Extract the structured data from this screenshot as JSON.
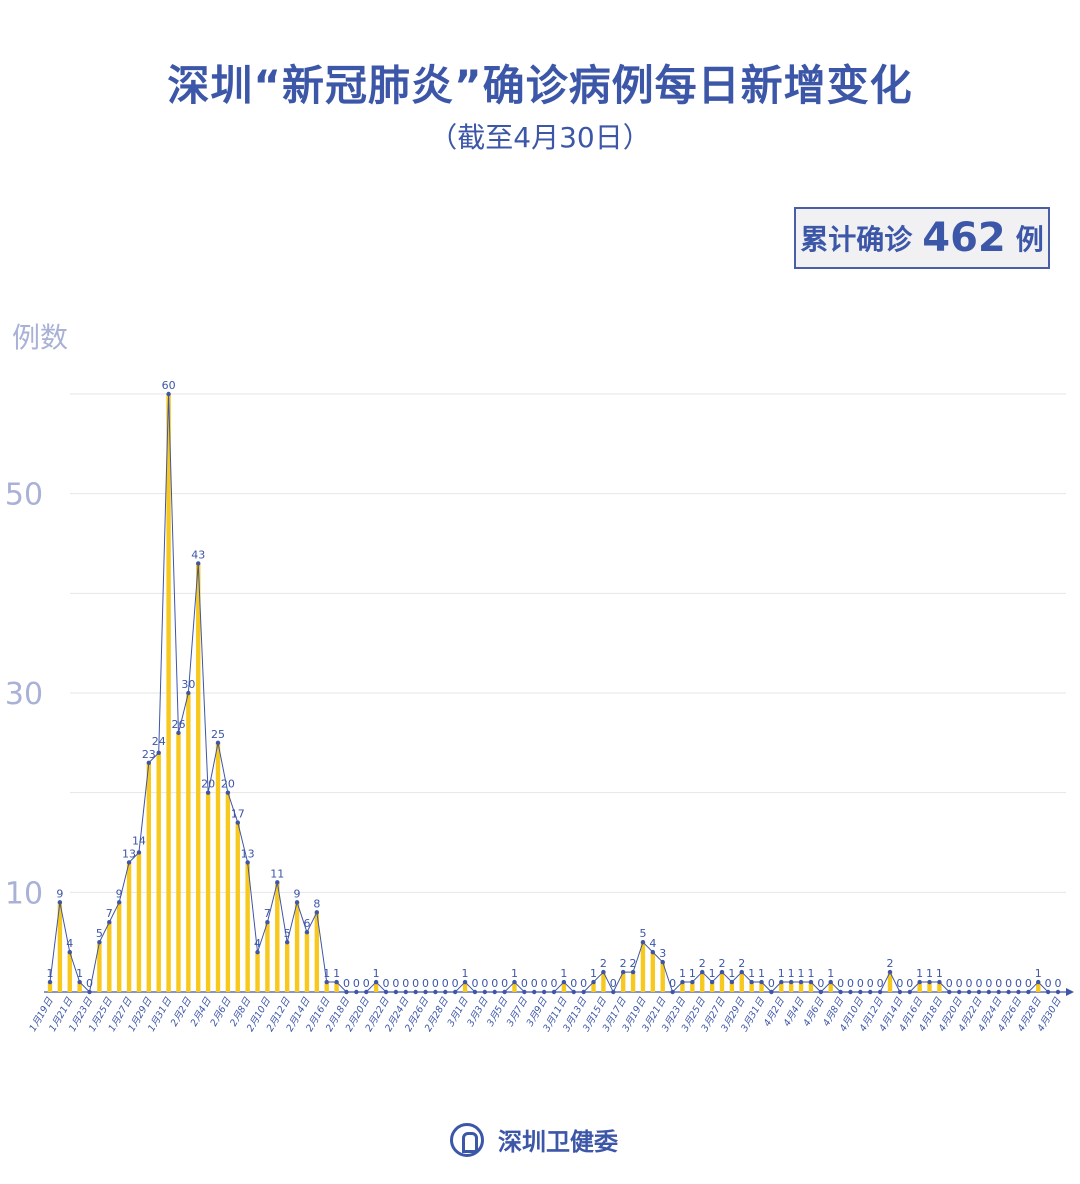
{
  "title": "深圳“新冠肺炎”确诊病例每日新增变化",
  "subtitle": "（截至4月30日）",
  "total": {
    "label": "累计确诊",
    "value": "462",
    "unit": "例"
  },
  "footer": {
    "org": "深圳卫健委"
  },
  "colors": {
    "bar": "#f7c81e",
    "line": "#3f55a5",
    "text": "#3c56a8",
    "axis_label": "#a9b1d6",
    "grid": "#e6e6e6"
  },
  "chart_data": {
    "type": "bar",
    "overlay": "line",
    "ylabel": "例数",
    "ylim": [
      0,
      60
    ],
    "yticks_labeled": [
      10,
      30,
      50
    ],
    "gridlines": [
      10,
      20,
      30,
      40,
      50,
      60
    ],
    "grid": true,
    "categories": [
      "1月19日",
      "1月20日",
      "1月21日",
      "1月22日",
      "1月23日",
      "1月24日",
      "1月25日",
      "1月26日",
      "1月27日",
      "1月28日",
      "1月29日",
      "1月30日",
      "1月31日",
      "2月1日",
      "2月2日",
      "2月3日",
      "2月4日",
      "2月5日",
      "2月6日",
      "2月7日",
      "2月8日",
      "2月9日",
      "2月10日",
      "2月11日",
      "2月12日",
      "2月13日",
      "2月14日",
      "2月15日",
      "2月16日",
      "2月17日",
      "2月18日",
      "2月19日",
      "2月20日",
      "2月21日",
      "2月22日",
      "2月23日",
      "2月24日",
      "2月25日",
      "2月26日",
      "2月27日",
      "2月28日",
      "2月29日",
      "3月1日",
      "3月2日",
      "3月3日",
      "3月4日",
      "3月5日",
      "3月6日",
      "3月7日",
      "3月8日",
      "3月9日",
      "3月10日",
      "3月11日",
      "3月12日",
      "3月13日",
      "3月14日",
      "3月15日",
      "3月16日",
      "3月17日",
      "3月18日",
      "3月19日",
      "3月20日",
      "3月21日",
      "3月22日",
      "3月23日",
      "3月24日",
      "3月25日",
      "3月26日",
      "3月27日",
      "3月28日",
      "3月29日",
      "3月30日",
      "3月31日",
      "4月1日",
      "4月2日",
      "4月3日",
      "4月4日",
      "4月5日",
      "4月6日",
      "4月7日",
      "4月8日",
      "4月9日",
      "4月10日",
      "4月11日",
      "4月12日",
      "4月13日",
      "4月14日",
      "4月15日",
      "4月16日",
      "4月17日",
      "4月18日",
      "4月19日",
      "4月20日",
      "4月21日",
      "4月22日",
      "4月23日",
      "4月24日",
      "4月25日",
      "4月26日",
      "4月27日",
      "4月28日",
      "4月29日",
      "4月30日"
    ],
    "values": [
      1,
      9,
      4,
      1,
      0,
      5,
      7,
      9,
      13,
      14,
      23,
      24,
      60,
      26,
      30,
      43,
      20,
      25,
      20,
      17,
      13,
      4,
      7,
      11,
      5,
      9,
      6,
      8,
      1,
      1,
      0,
      0,
      0,
      1,
      0,
      0,
      0,
      0,
      0,
      0,
      0,
      0,
      1,
      0,
      0,
      0,
      0,
      1,
      0,
      0,
      0,
      0,
      1,
      0,
      0,
      1,
      2,
      0,
      2,
      2,
      5,
      4,
      3,
      0,
      1,
      1,
      2,
      1,
      2,
      1,
      2,
      1,
      1,
      0,
      1,
      1,
      1,
      1,
      0,
      1,
      0,
      0,
      0,
      0,
      0,
      2,
      0,
      0,
      1,
      1,
      1,
      0,
      0,
      0,
      0,
      0,
      0,
      0,
      0,
      0,
      1,
      0,
      0
    ],
    "xtick_label_every": 2
  }
}
